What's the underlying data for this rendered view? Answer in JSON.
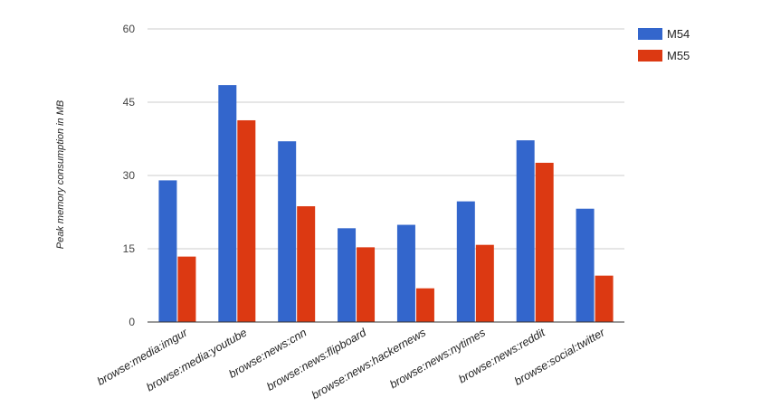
{
  "chart_data": {
    "type": "bar",
    "title": "",
    "xlabel": "",
    "ylabel": "Peak memory consumption in MB",
    "ylim": [
      0,
      60
    ],
    "yticks": [
      0,
      15,
      30,
      45,
      60
    ],
    "grid": true,
    "legend_position": "top-right",
    "categories": [
      "browse:media:imgur",
      "browse:media:youtube",
      "browse:news:cnn",
      "browse:news:flipboard",
      "browse:news:hackernews",
      "browse:news:nytimes",
      "browse:news:reddit",
      "browse:social:twitter"
    ],
    "series": [
      {
        "name": "M54",
        "color": "#3366cc",
        "values": [
          29.0,
          48.5,
          37.0,
          19.2,
          19.9,
          24.7,
          37.2,
          23.2
        ]
      },
      {
        "name": "M55",
        "color": "#dc3912",
        "values": [
          13.4,
          41.3,
          23.7,
          15.3,
          6.9,
          15.8,
          32.6,
          9.5
        ]
      }
    ]
  }
}
